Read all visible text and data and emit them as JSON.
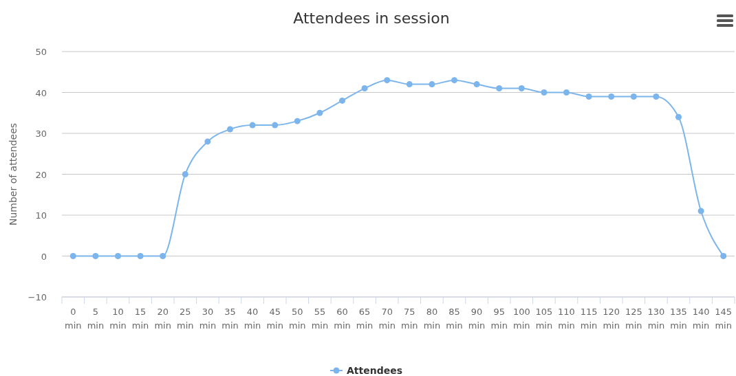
{
  "chart_data": {
    "type": "line",
    "title": "Attendees in session",
    "ylabel": "Number of attendees",
    "categories": [
      "0 min",
      "5 min",
      "10 min",
      "15 min",
      "20 min",
      "25 min",
      "30 min",
      "35 min",
      "40 min",
      "45 min",
      "50 min",
      "55 min",
      "60 min",
      "65 min",
      "70 min",
      "75 min",
      "80 min",
      "85 min",
      "90 min",
      "95 min",
      "100 min",
      "105 min",
      "110 min",
      "115 min",
      "120 min",
      "125 min",
      "130 min",
      "135 min",
      "140 min",
      "145 min"
    ],
    "series": [
      {
        "name": "Attendees",
        "color": "#7cb5ec",
        "values": [
          0,
          0,
          0,
          0,
          0,
          20,
          28,
          31,
          32,
          32,
          33,
          35,
          38,
          41,
          43,
          42,
          42,
          43,
          42,
          41,
          41,
          40,
          40,
          39,
          39,
          39,
          39,
          34,
          11,
          0
        ]
      }
    ],
    "ylim": [
      -10,
      50
    ],
    "yticks": [
      -10,
      0,
      10,
      20,
      30,
      40,
      50
    ],
    "grid": "y",
    "legend": "bottom",
    "marker": "circle",
    "line_style": "solid"
  }
}
